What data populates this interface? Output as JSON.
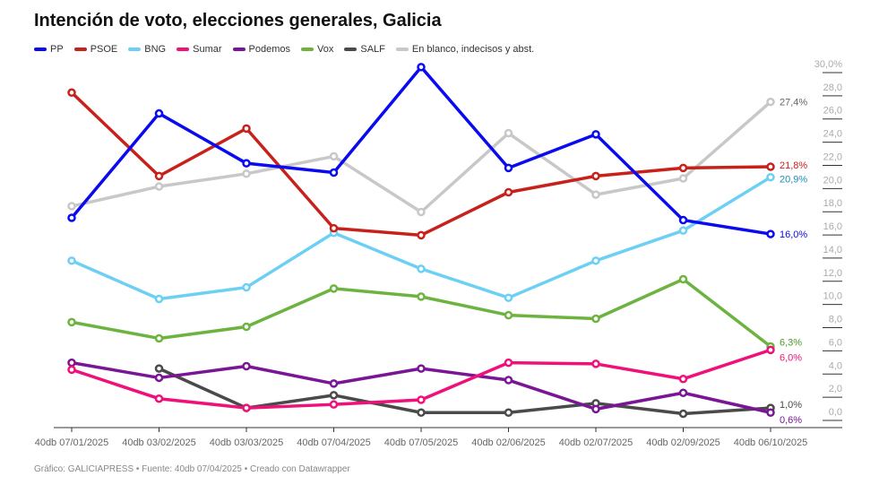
{
  "chart_data": {
    "type": "line",
    "title": "Intención de voto, elecciones generales, Galicia",
    "categories": [
      "40db 07/01/2025",
      "40db 03/02/2025",
      "40db 03/03/2025",
      "40db 07/04/2025",
      "40db 07/05/2025",
      "40db 02/06/2025",
      "40db 02/07/2025",
      "40db 02/09/2025",
      "40db 06/10/2025"
    ],
    "ylim": [
      0,
      30
    ],
    "yticks": [
      "0,0",
      "2,0",
      "4,0",
      "6,0",
      "8,0",
      "10,0",
      "12,0",
      "14,0",
      "16,0",
      "18,0",
      "20,0",
      "22,0",
      "24,0",
      "26,0",
      "28,0",
      "30,0%"
    ],
    "series": [
      {
        "name": "PP",
        "color": "#0a0af0",
        "values": [
          17.4,
          26.4,
          22.1,
          21.3,
          30.4,
          21.7,
          24.6,
          17.2,
          16.0
        ],
        "end_label": "16,0%"
      },
      {
        "name": "PSOE",
        "color": "#c8201a",
        "values": [
          28.2,
          21.0,
          25.1,
          16.5,
          15.9,
          19.6,
          21.0,
          21.7,
          21.8
        ],
        "end_label": "21,8%"
      },
      {
        "name": "BNG",
        "color": "#6cd0f5",
        "values": [
          13.7,
          10.4,
          11.4,
          16.1,
          13.0,
          10.5,
          13.7,
          16.3,
          20.9
        ],
        "end_label": "20,9%",
        "label_color": "#1e8db5"
      },
      {
        "name": "Sumar",
        "color": "#f0107a",
        "values": [
          4.3,
          1.8,
          1.0,
          1.3,
          1.7,
          4.9,
          4.8,
          3.5,
          6.0
        ],
        "end_label": "6,0%"
      },
      {
        "name": "Podemos",
        "color": "#7a1595",
        "values": [
          4.9,
          3.6,
          4.6,
          3.1,
          4.4,
          3.4,
          0.9,
          2.3,
          0.6
        ],
        "end_label": "0,6%"
      },
      {
        "name": "Vox",
        "color": "#6db33f",
        "values": [
          8.4,
          7.0,
          8.0,
          11.3,
          10.6,
          9.0,
          8.7,
          12.1,
          6.3
        ],
        "end_label": "6,3%",
        "label_color": "#4a9a2a"
      },
      {
        "name": "SALF",
        "color": "#4a4a4a",
        "values": [
          null,
          4.4,
          1.0,
          2.1,
          0.6,
          0.6,
          1.4,
          0.5,
          1.0
        ],
        "end_label": "1,0%"
      },
      {
        "name": "En blanco, indecisos y abst.",
        "color": "#c8c8c8",
        "values": [
          18.4,
          20.1,
          21.2,
          22.7,
          17.9,
          24.7,
          19.4,
          20.8,
          27.4
        ],
        "end_label": "27,4%",
        "label_color": "#666666"
      }
    ]
  },
  "footer": "Gráfico: GALICIAPRESS • Fuente: 40db 07/04/2025 • Creado con Datawrapper"
}
